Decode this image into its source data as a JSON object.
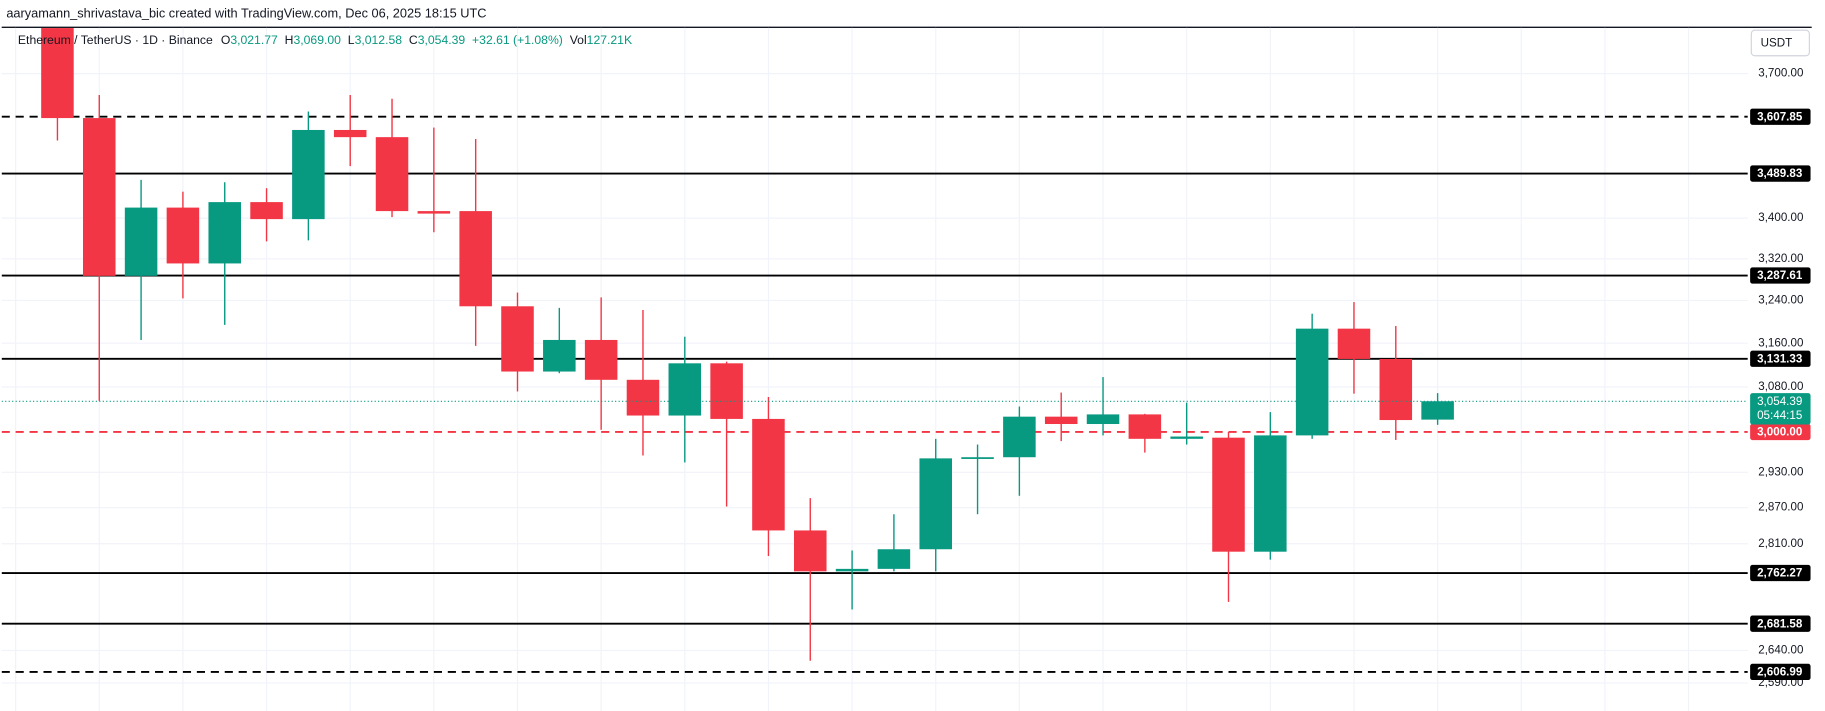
{
  "header": "aaryamann_shrivastava_bic created with TradingView.com, Dec 06, 2025 18:15 UTC",
  "chart_data": {
    "type": "candlestick",
    "legend": {
      "symbol": "Ethereum / TetherUS · 1D · Binance",
      "fields": [
        {
          "label": "O",
          "value": "3,021.77"
        },
        {
          "label": "H",
          "value": "3,069.00"
        },
        {
          "label": "L",
          "value": "3,012.58"
        },
        {
          "label": "C",
          "value": "3,054.39"
        }
      ],
      "change": "+32.61 (+1.08%)",
      "volume_label": "Vol",
      "volume": "127.21K"
    },
    "currency": "USDT",
    "up_color": "#089981",
    "down_color": "#f23645",
    "candles": {
      "open": [
        3800,
        3605,
        3287,
        3421,
        3311,
        3432,
        3398,
        3580,
        3565,
        3414,
        3414,
        3229,
        3108,
        3166,
        3093,
        3029,
        3123,
        3023,
        2832,
        2765,
        2769,
        2801,
        2954,
        2956,
        3027,
        3014,
        3031,
        2988,
        2990,
        2797,
        2994,
        3187,
        3131,
        3021.77
      ],
      "high": [
        3803,
        3654,
        3477,
        3453,
        3472,
        3460,
        3619,
        3654,
        3646,
        3585,
        3561,
        3255,
        3226,
        3246,
        3222,
        3172,
        3126,
        3062,
        2886,
        2799,
        2859,
        2988,
        2978,
        3045,
        3070,
        3098,
        3032,
        3052,
        3000,
        3035,
        3215,
        3237,
        3192,
        3069
      ],
      "low": [
        3558,
        3055,
        3166,
        3244,
        3194,
        3354,
        3356,
        3505,
        3402,
        3372,
        3155,
        3072,
        3105,
        3004,
        2959,
        2947,
        2872,
        2790,
        2624,
        2704,
        2765,
        2765,
        2859,
        2890,
        2984,
        2994,
        2964,
        2978,
        2716,
        2784,
        2988,
        3068,
        2986,
        3012.58
      ],
      "close": [
        3605,
        3287,
        3421,
        3311,
        3432,
        3398,
        3580,
        3565,
        3414,
        3409,
        3229,
        3108,
        3166,
        3093,
        3029,
        3123,
        3023,
        2832,
        2765,
        2769,
        2801,
        2954,
        2956,
        3027,
        3014,
        3031,
        2988,
        2992,
        2797,
        2994,
        3187,
        3131,
        3021,
        3054.39
      ]
    },
    "log_scale": true,
    "ylim": [
      2548,
      3803
    ],
    "yticks": [
      {
        "value": 3700,
        "label": "3,700.00"
      },
      {
        "value": 3400,
        "label": "3,400.00"
      },
      {
        "value": 3320,
        "label": "3,320.00"
      },
      {
        "value": 3240,
        "label": "3,240.00"
      },
      {
        "value": 3160,
        "label": "3,160.00"
      },
      {
        "value": 3080,
        "label": "3,080.00"
      },
      {
        "value": 2930,
        "label": "2,930.00"
      },
      {
        "value": 2870,
        "label": "2,870.00"
      },
      {
        "value": 2810,
        "label": "2,810.00"
      },
      {
        "value": 2640,
        "label": "2,640.00"
      },
      {
        "value": 2590,
        "label": "2,590.00"
      }
    ],
    "grid": true,
    "levels": [
      {
        "value": 3607.85,
        "label": "3,607.85",
        "style": "dashed",
        "color": "#000000"
      },
      {
        "value": 3489.83,
        "label": "3,489.83",
        "style": "solid",
        "color": "#000000"
      },
      {
        "value": 3287.61,
        "label": "3,287.61",
        "style": "solid",
        "color": "#000000"
      },
      {
        "value": 3131.33,
        "label": "3,131.33",
        "style": "solid",
        "color": "#000000"
      },
      {
        "value": 3000,
        "label": "3,000.00",
        "style": "dashed",
        "color": "#f23645"
      },
      {
        "value": 2762.27,
        "label": "2,762.27",
        "style": "solid",
        "color": "#000000"
      },
      {
        "value": 2681.58,
        "label": "2,681.58",
        "style": "solid",
        "color": "#000000"
      },
      {
        "value": 2606.99,
        "label": "2,606.99",
        "style": "dashed",
        "color": "#000000"
      }
    ],
    "last_price": {
      "value": 3054.39,
      "label": "3,054.39",
      "countdown": "05:44:15",
      "color": "#089981"
    }
  }
}
